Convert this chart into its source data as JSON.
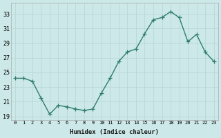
{
  "x": [
    0,
    1,
    2,
    3,
    4,
    5,
    6,
    7,
    8,
    9,
    10,
    11,
    12,
    13,
    14,
    15,
    16,
    17,
    18,
    19,
    20,
    21,
    22,
    23
  ],
  "y": [
    24.2,
    24.2,
    23.8,
    21.5,
    19.3,
    20.5,
    20.3,
    20.0,
    19.8,
    20.0,
    22.2,
    24.2,
    26.5,
    27.8,
    28.2,
    30.3,
    32.2,
    32.5,
    33.3,
    32.5,
    29.2,
    30.2,
    27.8,
    26.5
  ],
  "line_color": "#2e7d6e",
  "marker": "+",
  "marker_size": 4,
  "xlabel": "Humidex (Indice chaleur)",
  "xlim": [
    -0.5,
    23.5
  ],
  "ylim": [
    18.5,
    34.5
  ],
  "yticks": [
    19,
    21,
    23,
    25,
    27,
    29,
    31,
    33
  ],
  "xticks": [
    0,
    1,
    2,
    3,
    4,
    5,
    6,
    7,
    8,
    9,
    10,
    11,
    12,
    13,
    14,
    15,
    16,
    17,
    18,
    19,
    20,
    21,
    22,
    23
  ],
  "bg_color": "#cce8e8",
  "grid_color": "#b8d8d8",
  "line_width": 1.0
}
